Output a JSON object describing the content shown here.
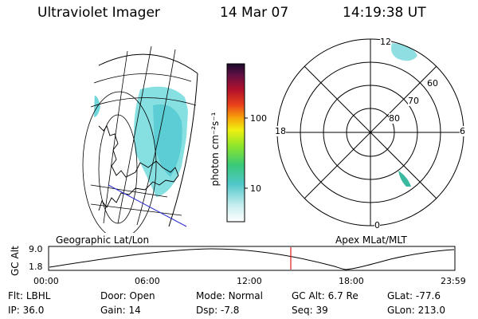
{
  "header": {
    "title": "Ultraviolet Imager",
    "date": "14 Mar 07",
    "time": "14:19:38 UT"
  },
  "colorbar": {
    "unit_label": "photon cm⁻²s⁻¹",
    "ticks": [
      "100",
      "10"
    ]
  },
  "polar_plot": {
    "hour_labels": [
      "12",
      "18",
      "6",
      "0"
    ],
    "lat_labels": [
      "60",
      "70",
      "80"
    ]
  },
  "panel_labels": {
    "left": "Geographic Lat/Lon",
    "right": "Apex MLat/MLT"
  },
  "altitude_plot": {
    "ylabel": "GC Alt",
    "yticks": [
      "9.0",
      "1.8"
    ],
    "xticks": [
      "00:00",
      "06:00",
      "12:00",
      "18:00",
      "23:59"
    ]
  },
  "info": {
    "row1": [
      {
        "label": "Flt:",
        "value": "LBHL"
      },
      {
        "label": "Door:",
        "value": "Open"
      },
      {
        "label": "Mode:",
        "value": "Normal"
      },
      {
        "label": "GC Alt:",
        "value": "6.7 Re"
      },
      {
        "label": "GLat:",
        "value": "-77.6"
      }
    ],
    "row2": [
      {
        "label": "IP:",
        "value": "36.0"
      },
      {
        "label": "Gain:",
        "value": "14"
      },
      {
        "label": "Dsp:",
        "value": "-7.8"
      },
      {
        "label": "Seq:",
        "value": "39"
      },
      {
        "label": "GLon:",
        "value": "213.0"
      }
    ]
  },
  "colors": {
    "aurora": "#6fd6d9",
    "marker": "#e01818",
    "coast": "#000000",
    "terminator": "#2b2bd0"
  }
}
